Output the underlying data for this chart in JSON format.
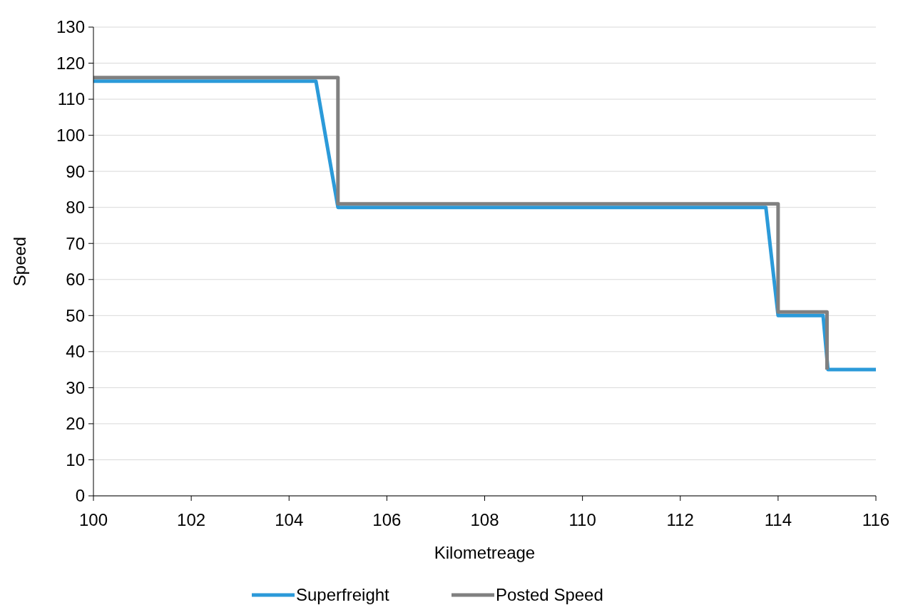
{
  "chart_data": {
    "type": "line",
    "xlabel": "Kilometreage",
    "ylabel": "Speed",
    "xlim": [
      100,
      116
    ],
    "xticks": [
      100,
      102,
      104,
      106,
      108,
      110,
      112,
      114,
      116
    ],
    "ylim": [
      0,
      130
    ],
    "yticks": [
      0,
      10,
      20,
      30,
      40,
      50,
      60,
      70,
      80,
      90,
      100,
      110,
      120,
      130
    ],
    "grid": "y",
    "legend": "bottom",
    "marker": "none",
    "line_style": "solid",
    "series": [
      {
        "name": "Superfreight",
        "color": "#2b9ad9",
        "x": [
          100,
          104.55,
          105,
          113.75,
          114,
          114.92,
          115.02,
          116
        ],
        "values": [
          115,
          115,
          80,
          80,
          50,
          50,
          35,
          35
        ]
      },
      {
        "name": "Posted Speed",
        "color": "#808080",
        "x": [
          100,
          105,
          105,
          114,
          114,
          115,
          115
        ],
        "values": [
          116,
          116,
          81,
          81,
          51,
          51,
          35
        ]
      }
    ]
  }
}
